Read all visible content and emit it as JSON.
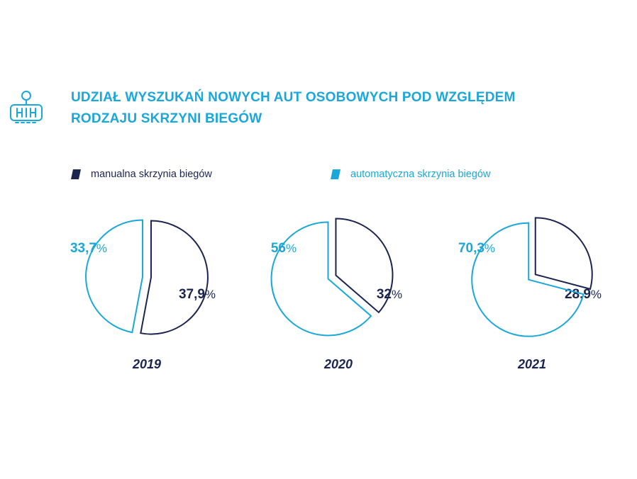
{
  "title_line1": "UDZIAŁ WYSZUKAŃ NOWYCH AUT OSOBOWYCH POD WZGLĘDEM",
  "title_line2": "RODZAJU SKRZYNI BIEGÓW",
  "icon": "gear-shift-icon",
  "colors": {
    "manual": "#1b2550",
    "automatic": "#1aa7d9"
  },
  "legend": {
    "manual": "manualna skrzynia biegów",
    "automatic": "automatyczna skrzynia biegów"
  },
  "chart_data": [
    {
      "type": "pie",
      "title": "2019",
      "slices": [
        {
          "name": "manualna skrzynia biegów",
          "value": 37.9,
          "value_label": "37,9",
          "unit": "%"
        },
        {
          "name": "automatyczna skrzynia biegów",
          "value": 33.7,
          "value_label": "33,7",
          "unit": "%"
        }
      ]
    },
    {
      "type": "pie",
      "title": "2020",
      "slices": [
        {
          "name": "manualna skrzynia biegów",
          "value": 32,
          "value_label": "32",
          "unit": "%"
        },
        {
          "name": "automatyczna skrzynia biegów",
          "value": 56,
          "value_label": "56",
          "unit": "%"
        }
      ]
    },
    {
      "type": "pie",
      "title": "2021",
      "slices": [
        {
          "name": "manualna skrzynia biegów",
          "value": 28.9,
          "value_label": "28,9",
          "unit": "%"
        },
        {
          "name": "automatyczna skrzynia biegów",
          "value": 70.3,
          "value_label": "70,3",
          "unit": "%"
        }
      ]
    }
  ]
}
